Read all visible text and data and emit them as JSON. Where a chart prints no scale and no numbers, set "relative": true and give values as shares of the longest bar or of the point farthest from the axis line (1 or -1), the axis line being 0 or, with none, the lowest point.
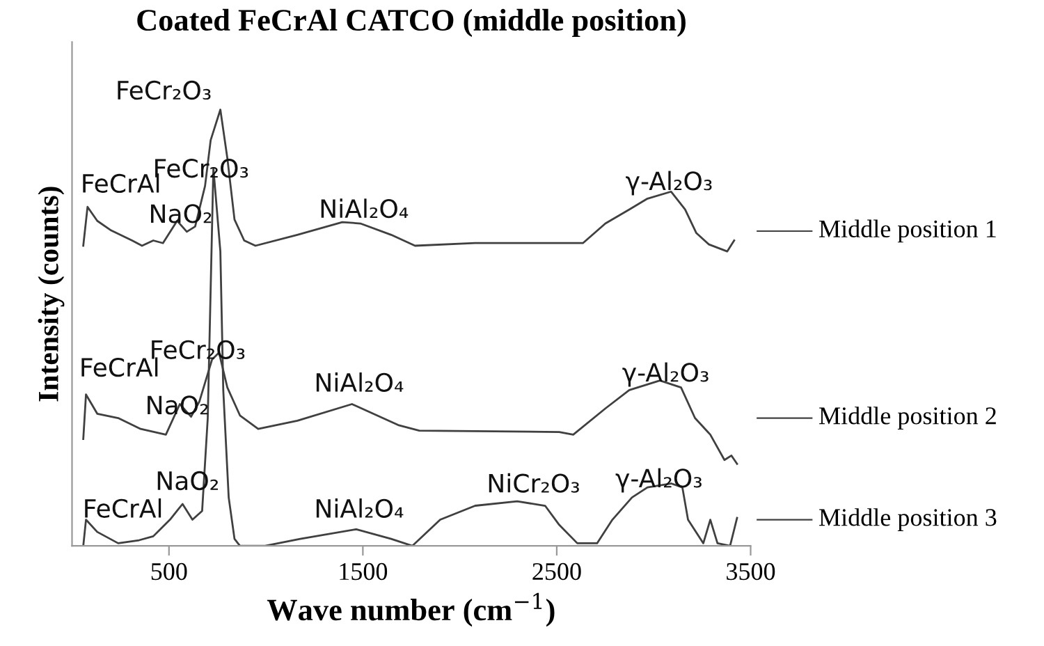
{
  "chart_data": {
    "type": "line",
    "title": "Coated FeCrAl CATCO (middle position)",
    "xlabel": "Wave number (cm$^{−1}$)",
    "ylabel": "Intensity (counts)",
    "relative": true,
    "xlim": [
      0,
      3500
    ],
    "xticks": [
      500,
      1500,
      2500,
      3500
    ],
    "grid": false,
    "legend": "right",
    "marker": "none",
    "line_style": "solid",
    "series": [
      {
        "name": "Middle position 1",
        "color": "#404040",
        "x": [
          58,
          80,
          130,
          202,
          310,
          361,
          419,
          469,
          542,
          592,
          635,
          686,
          715,
          765,
          801,
          838,
          888,
          946,
          1162,
          1394,
          1487,
          1646,
          1769,
          2079,
          2635,
          2751,
          2874,
          2968,
          3090,
          3162,
          3220,
          3285,
          3379,
          3415
        ],
        "values": [
          0.688,
          0.777,
          0.745,
          0.723,
          0.7,
          0.688,
          0.7,
          0.694,
          0.745,
          0.72,
          0.732,
          0.825,
          0.93,
          1.0,
          0.889,
          0.748,
          0.7,
          0.688,
          0.713,
          0.742,
          0.739,
          0.713,
          0.688,
          0.694,
          0.694,
          0.739,
          0.771,
          0.796,
          0.812,
          0.771,
          0.717,
          0.691,
          0.675,
          0.7
        ]
      },
      {
        "name": "Middle position 2",
        "color": "#404040",
        "x": [
          58,
          72,
          130,
          238,
          354,
          484,
          556,
          614,
          657,
          722,
          758,
          801,
          866,
          960,
          1162,
          1444,
          1682,
          1791,
          2513,
          2585,
          2751,
          2874,
          3032,
          3141,
          3213,
          3292,
          3365,
          3401,
          3430
        ],
        "values": [
          0.245,
          0.347,
          0.303,
          0.293,
          0.268,
          0.255,
          0.325,
          0.296,
          0.331,
          0.427,
          0.443,
          0.363,
          0.299,
          0.268,
          0.287,
          0.325,
          0.277,
          0.264,
          0.261,
          0.255,
          0.315,
          0.357,
          0.379,
          0.363,
          0.293,
          0.255,
          0.197,
          0.207,
          0.188
        ]
      },
      {
        "name": "Middle position 3",
        "color": "#404040",
        "x": [
          58,
          72,
          130,
          238,
          346,
          419,
          505,
          570,
          621,
          671,
          700,
          729,
          765,
          780,
          808,
          838,
          866,
          996,
          1177,
          1466,
          1646,
          1755,
          1899,
          2079,
          2296,
          2440,
          2513,
          2606,
          2708,
          2787,
          2888,
          2968,
          3090,
          3148,
          3177,
          3256,
          3292,
          3329,
          3394,
          3430
        ],
        "values": [
          0.0,
          0.06,
          0.032,
          0.006,
          0.013,
          0.022,
          0.06,
          0.096,
          0.06,
          0.08,
          0.293,
          0.866,
          0.675,
          0.357,
          0.111,
          0.016,
          0.0,
          0.0,
          0.016,
          0.038,
          0.016,
          0.0,
          0.06,
          0.092,
          0.102,
          0.092,
          0.048,
          0.006,
          0.006,
          0.06,
          0.111,
          0.134,
          0.143,
          0.134,
          0.06,
          0.006,
          0.06,
          0.006,
          0.0,
          0.064
        ]
      }
    ],
    "annotations": [
      "FeCr₂O₃",
      "FeCr₂O₃",
      "FeCrAl",
      "NaO₂",
      "NiAl₂O₄",
      "γ-Al₂O₃",
      "FeCrAl",
      "NaO₂",
      "FeCr₂O₃",
      "NiAl₂O₄",
      "γ-Al₂O₃",
      "FeCrAl",
      "NaO₂",
      "NiAl₂O₄",
      "NiCr₂O₃",
      "γ-Al₂O₃"
    ]
  }
}
